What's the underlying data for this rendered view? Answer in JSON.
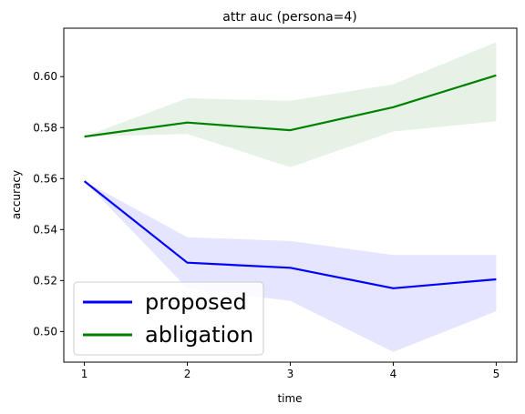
{
  "chart_data": {
    "type": "line",
    "title": "attr auc (persona=4)",
    "xlabel": "time",
    "ylabel": "accuracy",
    "x": [
      1,
      2,
      3,
      4,
      5
    ],
    "xlim": [
      0.8,
      5.2
    ],
    "ylim": [
      0.488,
      0.619
    ],
    "xticks": [
      "1",
      "2",
      "3",
      "4",
      "5"
    ],
    "yticks": [
      "0.50",
      "0.52",
      "0.54",
      "0.56",
      "0.58",
      "0.60"
    ],
    "grid": false,
    "legend_position": "lower-left",
    "series": [
      {
        "name": "proposed",
        "color": "#0000ff",
        "band_color": "#e5e5ff",
        "values": [
          0.559,
          0.527,
          0.525,
          0.517,
          0.5205
        ],
        "lower": [
          0.559,
          0.517,
          0.512,
          0.492,
          0.508
        ],
        "upper": [
          0.559,
          0.537,
          0.5355,
          0.53,
          0.53
        ]
      },
      {
        "name": "abligation",
        "color": "#008000",
        "band_color": "#e5f2e5",
        "values": [
          0.5765,
          0.582,
          0.579,
          0.588,
          0.6005
        ],
        "lower": [
          0.5765,
          0.5775,
          0.5645,
          0.5785,
          0.5825
        ],
        "upper": [
          0.5765,
          0.5915,
          0.5905,
          0.597,
          0.6135
        ]
      }
    ]
  }
}
